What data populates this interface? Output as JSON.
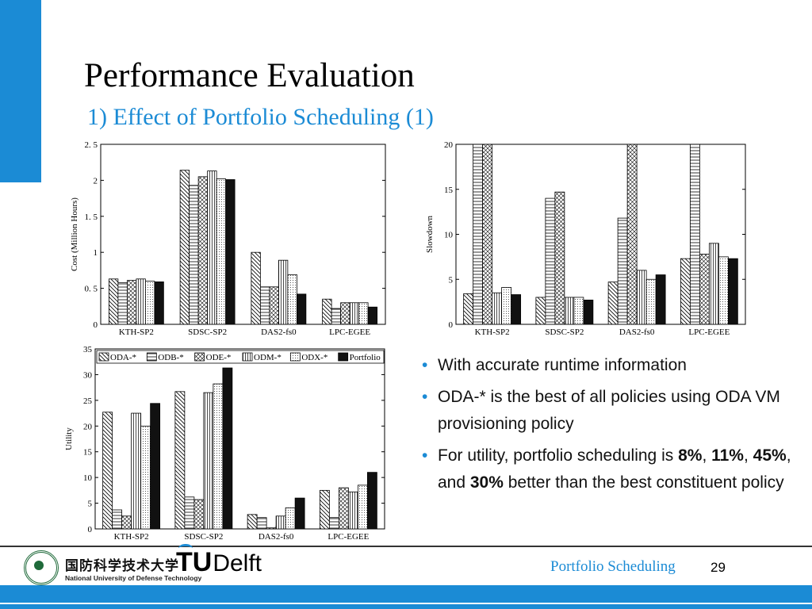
{
  "slide": {
    "title": "Performance Evaluation",
    "subtitle": "1) Effect of Portfolio Scheduling (1)",
    "page_number": "29",
    "footer_title": "Portfolio Scheduling",
    "accent_color": "#1b8bd5"
  },
  "logos": {
    "nudt_cn": "国防科学技术大学",
    "nudt_en": "National University of Defense Technology",
    "tud_mark": "TU",
    "tud_name": "Delft"
  },
  "bullets": [
    {
      "segments": [
        {
          "text": "With accurate runtime information",
          "bold": false
        }
      ]
    },
    {
      "segments": [
        {
          "text": "ODA-* is the best of all policies using ODA VM provisioning policy",
          "bold": false
        }
      ]
    },
    {
      "segments": [
        {
          "text": "For utility, portfolio scheduling is ",
          "bold": false
        },
        {
          "text": "8%",
          "bold": true
        },
        {
          "text": ", ",
          "bold": false
        },
        {
          "text": "11%",
          "bold": true
        },
        {
          "text": ", ",
          "bold": false
        },
        {
          "text": "45%",
          "bold": true
        },
        {
          "text": ", and ",
          "bold": false
        },
        {
          "text": "30%",
          "bold": true
        },
        {
          "text": " better than the best constituent policy",
          "bold": false
        }
      ]
    }
  ],
  "legend_entries": [
    "ODA-*",
    "ODB-*",
    "ODE-*",
    "ODM-*",
    "ODX-*",
    "Portfolio"
  ],
  "chart_data": [
    {
      "type": "bar",
      "ylabel": "Cost (Million Hours)",
      "ylim": [
        0,
        2.5
      ],
      "yticks": [
        "0",
        "0. 5",
        "1",
        "1. 5",
        "2",
        "2. 5"
      ],
      "ytick_values": [
        0,
        0.5,
        1,
        1.5,
        2,
        2.5
      ],
      "categories": [
        "KTH-SP2",
        "SDSC-SP2",
        "DAS2-fs0",
        "LPC-EGEE"
      ],
      "series": [
        {
          "name": "ODA-*",
          "values": [
            0.63,
            2.14,
            1.0,
            0.35
          ]
        },
        {
          "name": "ODB-*",
          "values": [
            0.58,
            1.93,
            0.52,
            0.22
          ]
        },
        {
          "name": "ODE-*",
          "values": [
            0.61,
            2.05,
            0.52,
            0.3
          ]
        },
        {
          "name": "ODM-*",
          "values": [
            0.63,
            2.13,
            0.89,
            0.3
          ]
        },
        {
          "name": "ODX-*",
          "values": [
            0.6,
            2.02,
            0.69,
            0.3
          ]
        },
        {
          "name": "Portfolio",
          "values": [
            0.59,
            2.01,
            0.42,
            0.24
          ]
        }
      ]
    },
    {
      "type": "bar",
      "ylabel": "Slowdown",
      "ylim": [
        0,
        20
      ],
      "yticks": [
        "0",
        "5",
        "10",
        "15",
        "20"
      ],
      "ytick_values": [
        0,
        5,
        10,
        15,
        20
      ],
      "categories": [
        "KTH-SP2",
        "SDSC-SP2",
        "DAS2-fs0",
        "LPC-EGEE"
      ],
      "series": [
        {
          "name": "ODA-*",
          "values": [
            3.4,
            3.0,
            4.7,
            7.3
          ]
        },
        {
          "name": "ODB-*",
          "values": [
            20,
            14.0,
            11.8,
            20
          ]
        },
        {
          "name": "ODE-*",
          "values": [
            20,
            14.7,
            20,
            7.8
          ]
        },
        {
          "name": "ODM-*",
          "values": [
            3.5,
            3.0,
            6.0,
            9.0
          ]
        },
        {
          "name": "ODX-*",
          "values": [
            4.1,
            3.0,
            5.0,
            7.5
          ]
        },
        {
          "name": "Portfolio",
          "values": [
            3.3,
            2.7,
            5.5,
            7.3
          ]
        }
      ]
    },
    {
      "type": "bar",
      "ylabel": "Utility",
      "ylim": [
        0,
        35
      ],
      "yticks": [
        "0",
        "5",
        "10",
        "15",
        "20",
        "25",
        "30",
        "35"
      ],
      "ytick_values": [
        0,
        5,
        10,
        15,
        20,
        25,
        30,
        35
      ],
      "categories": [
        "KTH-SP2",
        "SDSC-SP2",
        "DAS2-fs0",
        "LPC-EGEE"
      ],
      "legend": "top",
      "series": [
        {
          "name": "ODA-*",
          "values": [
            22.7,
            26.7,
            2.8,
            7.5
          ]
        },
        {
          "name": "ODB-*",
          "values": [
            3.7,
            6.2,
            2.2,
            2.2
          ]
        },
        {
          "name": "ODE-*",
          "values": [
            2.5,
            5.7,
            0.2,
            8.0
          ]
        },
        {
          "name": "ODM-*",
          "values": [
            22.5,
            26.5,
            2.5,
            7.2
          ]
        },
        {
          "name": "ODX-*",
          "values": [
            20.0,
            28.2,
            4.1,
            8.5
          ]
        },
        {
          "name": "Portfolio",
          "values": [
            24.4,
            31.3,
            6.0,
            11.0
          ]
        }
      ]
    }
  ]
}
